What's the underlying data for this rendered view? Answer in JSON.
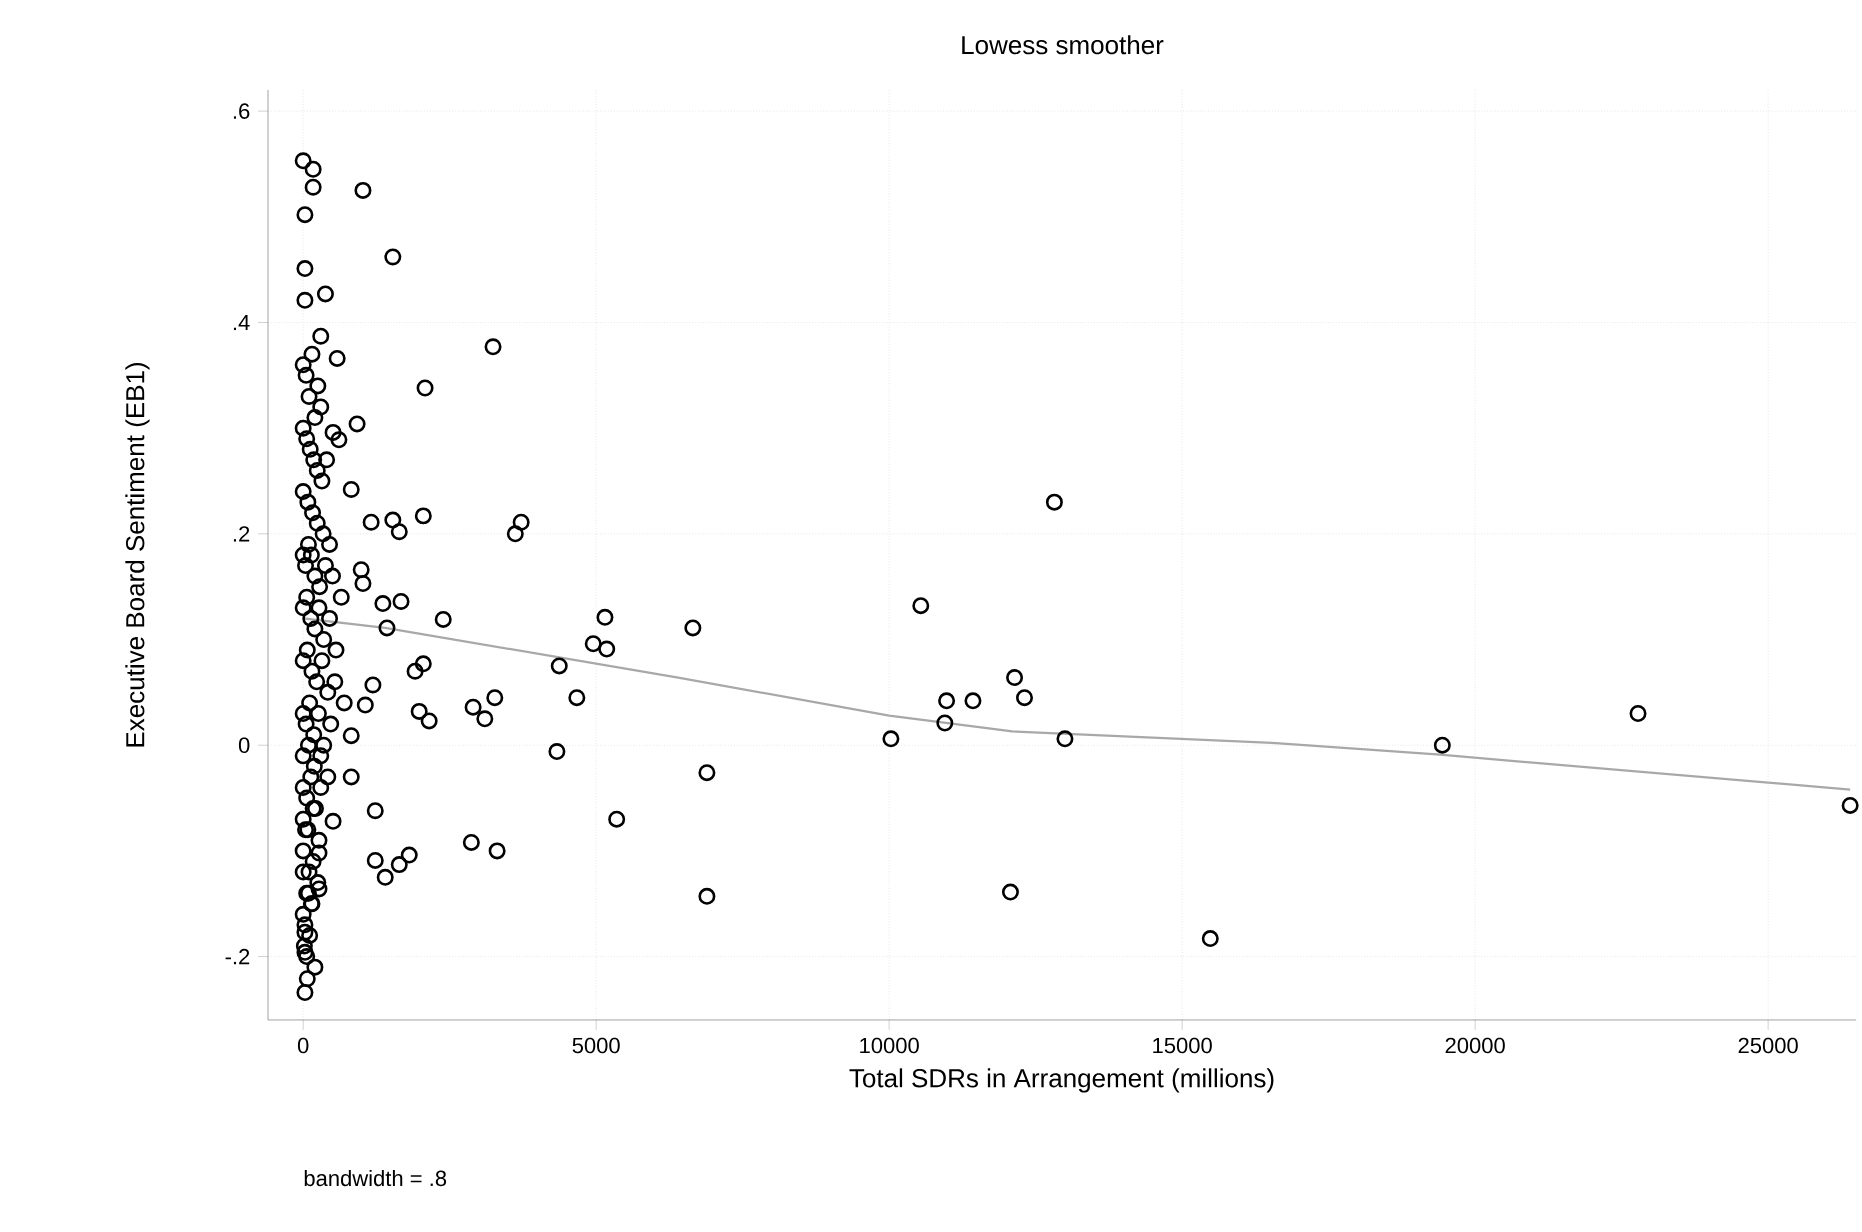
{
  "chart_data": {
    "type": "scatter",
    "title": "Lowess smoother",
    "xlabel": "Total SDRs in Arrangement (millions)",
    "ylabel": "Executive Board Sentiment (EB1)",
    "annotations": [
      "bandwidth = .8"
    ],
    "xlim": [
      -600,
      26500
    ],
    "ylim": [
      -0.26,
      0.62
    ],
    "xticks": [
      0,
      5000,
      10000,
      15000,
      20000,
      25000
    ],
    "yticks": [
      {
        "value": -0.2,
        "label": "-.2"
      },
      {
        "value": 0,
        "label": "0"
      },
      {
        "value": 0.2,
        "label": ".2"
      },
      {
        "value": 0.4,
        "label": ".4"
      },
      {
        "value": 0.6,
        "label": ".6"
      }
    ],
    "grid": true,
    "series": [
      {
        "type": "scatter",
        "color": "#000000",
        "marker": "circle",
        "x": [
          0,
          170,
          170,
          30,
          1020,
          1530,
          30,
          380,
          30,
          300,
          3240,
          580,
          2080,
          920,
          510,
          610,
          820,
          1160,
          1530,
          1640,
          2050,
          3720,
          3620,
          990,
          1020,
          1360,
          1670,
          2390,
          1430,
          5150,
          6650,
          4950,
          5180,
          2050,
          1910,
          4370,
          1190,
          1060,
          1980,
          2150,
          2900,
          3100,
          3270,
          4670,
          820,
          4330,
          6890,
          820,
          1230,
          5350,
          510,
          1230,
          1400,
          1640,
          1810,
          2870,
          3310,
          6890,
          270,
          270,
          30,
          30,
          70,
          30,
          12820,
          10540,
          12140,
          12310,
          10980,
          11430,
          10950,
          10030,
          13000,
          12070,
          15480,
          19440,
          22780,
          26400,
          0,
          50,
          100,
          150,
          200,
          250,
          300,
          0,
          60,
          120,
          180,
          240,
          320,
          400,
          0,
          80,
          160,
          240,
          340,
          450,
          0,
          40,
          90,
          140,
          200,
          280,
          380,
          500,
          650,
          0,
          60,
          130,
          200,
          270,
          350,
          450,
          560,
          0,
          70,
          150,
          230,
          320,
          420,
          540,
          700,
          0,
          50,
          110,
          180,
          260,
          350,
          470,
          0,
          90,
          190,
          300,
          420,
          0,
          60,
          130,
          210,
          300,
          0,
          80,
          170,
          270,
          0,
          40,
          100,
          170,
          250,
          0,
          60,
          140,
          0,
          90,
          30,
          150,
          20,
          110,
          200,
          60
        ],
        "values": [
          0.553,
          0.545,
          0.528,
          0.502,
          0.525,
          0.462,
          0.451,
          0.427,
          0.421,
          0.387,
          0.377,
          0.366,
          0.338,
          0.304,
          0.296,
          0.289,
          0.242,
          0.211,
          0.213,
          0.202,
          0.217,
          0.211,
          0.2,
          0.166,
          0.153,
          0.134,
          0.136,
          0.119,
          0.111,
          0.121,
          0.111,
          0.096,
          0.091,
          0.077,
          0.07,
          0.075,
          0.057,
          0.038,
          0.032,
          0.023,
          0.036,
          0.025,
          0.045,
          0.045,
          0.009,
          -0.006,
          -0.026,
          -0.03,
          -0.062,
          -0.07,
          -0.072,
          -0.109,
          -0.125,
          -0.113,
          -0.104,
          -0.092,
          -0.1,
          -0.143,
          -0.102,
          -0.136,
          -0.177,
          -0.196,
          -0.221,
          -0.234,
          0.23,
          0.132,
          0.064,
          0.045,
          0.042,
          0.042,
          0.021,
          0.006,
          0.006,
          -0.139,
          -0.183,
          0.0,
          0.03,
          -0.057,
          0.36,
          0.35,
          0.33,
          0.37,
          0.31,
          0.34,
          0.32,
          0.3,
          0.29,
          0.28,
          0.27,
          0.26,
          0.25,
          0.27,
          0.24,
          0.23,
          0.22,
          0.21,
          0.2,
          0.19,
          0.18,
          0.17,
          0.19,
          0.18,
          0.16,
          0.15,
          0.17,
          0.16,
          0.14,
          0.13,
          0.14,
          0.12,
          0.11,
          0.13,
          0.1,
          0.12,
          0.09,
          0.08,
          0.09,
          0.07,
          0.06,
          0.08,
          0.05,
          0.06,
          0.04,
          0.03,
          0.02,
          0.04,
          0.01,
          0.03,
          0.0,
          0.02,
          -0.01,
          0.0,
          -0.02,
          -0.01,
          -0.03,
          -0.04,
          -0.05,
          -0.03,
          -0.06,
          -0.04,
          -0.07,
          -0.08,
          -0.06,
          -0.09,
          -0.1,
          -0.08,
          -0.12,
          -0.11,
          -0.13,
          -0.12,
          -0.14,
          -0.15,
          -0.16,
          -0.14,
          -0.17,
          -0.15,
          -0.19,
          -0.18,
          -0.21,
          -0.2
        ]
      },
      {
        "type": "line",
        "color": "#a8a8a8",
        "marker": "none",
        "line_style": "solid",
        "x": [
          0,
          1400,
          6400,
          10000,
          12100,
          16600,
          19400,
          26400
        ],
        "values": [
          0.12,
          0.111,
          0.064,
          0.028,
          0.013,
          0.002,
          -0.009,
          -0.042
        ]
      }
    ]
  }
}
